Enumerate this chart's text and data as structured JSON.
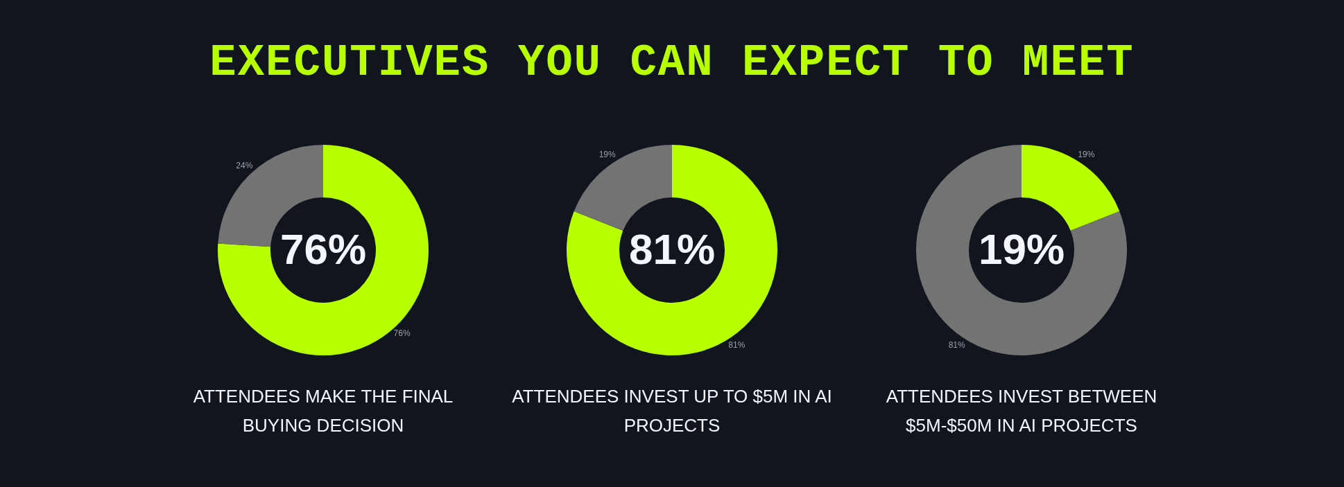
{
  "chart_data": [
    {
      "type": "donut",
      "title": "EXECUTIVES YOU CAN EXPECT TO MEET",
      "categories": [
        null,
        null
      ],
      "values": [
        76,
        24
      ],
      "colors": [
        "#b8ff00",
        "#737373"
      ],
      "value_labels": [
        "76%",
        "24%"
      ],
      "annotations": [
        "76%",
        "ATTENDEES MAKE THE FINAL BUYING DECISION"
      ]
    },
    {
      "type": "donut",
      "categories": [
        null,
        null
      ],
      "values": [
        81,
        19
      ],
      "colors": [
        "#b8ff00",
        "#737373"
      ],
      "value_labels": [
        "81%",
        "19%"
      ],
      "annotations": [
        "81%",
        "ATTENDEES INVEST UP TO $5M IN AI PROJECTS"
      ]
    },
    {
      "type": "donut",
      "categories": [
        null,
        null
      ],
      "values": [
        19,
        81
      ],
      "colors": [
        "#b8ff00",
        "#737373"
      ],
      "value_labels": [
        "19%",
        "81%"
      ],
      "annotations": [
        "19%",
        "ATTENDEES INVEST BETWEEN $5M-$50M IN AI PROJECTS"
      ]
    }
  ]
}
